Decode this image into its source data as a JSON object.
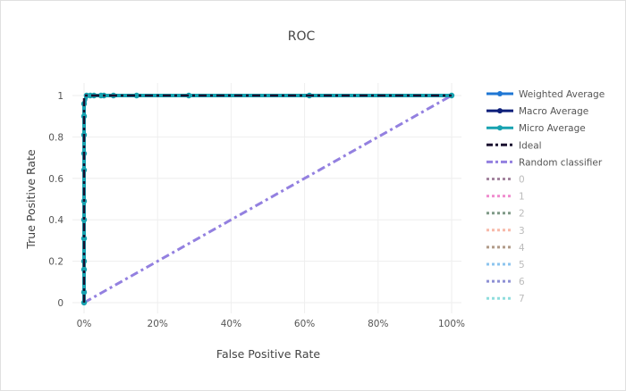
{
  "chart_data": {
    "type": "line",
    "title": "ROC",
    "xlabel": "False Positive Rate",
    "ylabel": "True Positive Rate",
    "xlim": [
      -0.02,
      1.0
    ],
    "ylim": [
      0,
      1
    ],
    "grid": true,
    "legend_placement": "right",
    "x_ticks": [
      {
        "v": 0,
        "label": "0%"
      },
      {
        "v": 0.2,
        "label": "20%"
      },
      {
        "v": 0.4,
        "label": "40%"
      },
      {
        "v": 0.6,
        "label": "60%"
      },
      {
        "v": 0.8,
        "label": "80%"
      },
      {
        "v": 1,
        "label": "100%"
      }
    ],
    "y_ticks": [
      {
        "v": 0,
        "label": "0"
      },
      {
        "v": 0.2,
        "label": "0.2"
      },
      {
        "v": 0.4,
        "label": "0.4"
      },
      {
        "v": 0.6,
        "label": "0.6"
      },
      {
        "v": 0.8,
        "label": "0.8"
      },
      {
        "v": 1,
        "label": "1"
      }
    ],
    "curve_x": [
      0,
      0,
      0,
      0,
      0,
      0,
      0,
      0,
      0,
      0,
      0,
      0,
      0.007,
      0.017,
      0.027,
      0.046,
      0.054,
      0.08,
      0.143,
      0.285,
      0.613,
      1.0
    ],
    "curve_y": [
      0,
      0.05,
      0.16,
      0.2,
      0.31,
      0.4,
      0.49,
      0.64,
      0.72,
      0.81,
      0.9,
      0.96,
      1,
      1,
      1,
      1,
      1,
      1,
      1,
      1,
      1,
      1
    ],
    "series": [
      {
        "name": "Weighted Average",
        "color": "#1f77d4",
        "style": "solid-markers",
        "visible": true
      },
      {
        "name": "Macro Average",
        "color": "#0d1f7a",
        "style": "solid-markers",
        "visible": true
      },
      {
        "name": "Micro Average",
        "color": "#17a2b0",
        "style": "solid-markers",
        "visible": true
      },
      {
        "name": "Ideal",
        "color": "#1a1030",
        "style": "dashdot",
        "visible": true,
        "x": [
          0,
          0,
          1
        ],
        "y": [
          0,
          1,
          1
        ]
      },
      {
        "name": "Random classifier",
        "color": "#9380e0",
        "style": "dashdot",
        "visible": true,
        "x": [
          0,
          1
        ],
        "y": [
          0,
          1
        ]
      },
      {
        "name": "0",
        "color": "#a3849e",
        "style": "dot",
        "visible": false
      },
      {
        "name": "1",
        "color": "#f08ecf",
        "style": "dot",
        "visible": false
      },
      {
        "name": "2",
        "color": "#7f9a87",
        "style": "dot",
        "visible": false
      },
      {
        "name": "3",
        "color": "#f7b9a9",
        "style": "dot",
        "visible": false
      },
      {
        "name": "4",
        "color": "#b09a88",
        "style": "dot",
        "visible": false
      },
      {
        "name": "5",
        "color": "#8cc4ef",
        "style": "dot",
        "visible": false
      },
      {
        "name": "6",
        "color": "#8d8fd4",
        "style": "dot",
        "visible": false
      },
      {
        "name": "7",
        "color": "#8fdddd",
        "style": "dot",
        "visible": false
      }
    ]
  }
}
